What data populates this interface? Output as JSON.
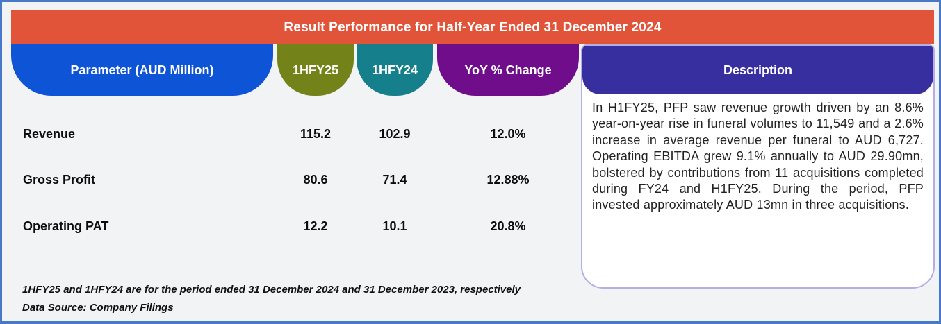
{
  "title": "Result Performance for Half-Year Ended 31 December 2024",
  "table": {
    "headers": {
      "parameter": "Parameter (AUD Million)",
      "col1": "1HFY25",
      "col2": "1HFY24",
      "yoy": "YoY % Change",
      "description": "Description"
    },
    "rows": [
      {
        "parameter": "Revenue",
        "hfy25": "115.2",
        "hfy24": "102.9",
        "yoy": "12.0%"
      },
      {
        "parameter": "Gross Profit",
        "hfy25": "80.6",
        "hfy24": "71.4",
        "yoy": "12.88%"
      },
      {
        "parameter": "Operating PAT",
        "hfy25": "12.2",
        "hfy24": "10.1",
        "yoy": "20.8%"
      }
    ]
  },
  "description": {
    "text": "In H1FY25, PFP saw revenue growth driven by an 8.6% year-on-year rise in funeral volumes to 11,549 and a 2.6% increase in average revenue per funeral to AUD 6,727. Operating EBITDA grew 9.1% annually to AUD 29.90mn, bolstered by contributions from 11 acquisitions completed during FY24 and H1FY25. During the period, PFP invested approximately AUD 13mn in three acquisitions."
  },
  "footnotes": [
    "1HFY25 and 1HFY24 are for the period ended 31 December 2024 and 31 December 2023, respectively",
    "Data Source: Company Filings"
  ],
  "colors": {
    "title_bar": "#E2543A",
    "parameter_header": "#0E54D6",
    "col_1hfy25": "#73831A",
    "col_1hfy24": "#15808C",
    "col_yoy": "#6F0D8B",
    "description_header": "#372FA0",
    "page_border": "#4878C8",
    "page_background": "#F2F3F4"
  },
  "chart_data": {
    "type": "table",
    "title": "Result Performance for Half-Year Ended 31 December 2024",
    "columns": [
      "Parameter (AUD Million)",
      "1HFY25",
      "1HFY24",
      "YoY % Change"
    ],
    "rows": [
      [
        "Revenue",
        115.2,
        102.9,
        "12.0%"
      ],
      [
        "Gross Profit",
        80.6,
        71.4,
        "12.88%"
      ],
      [
        "Operating PAT",
        12.2,
        10.1,
        "20.8%"
      ]
    ],
    "units": "AUD Million",
    "notes": "1HFY25 and 1HFY24 are for the period ended 31 December 2024 and 31 December 2023, respectively. Data Source: Company Filings"
  }
}
